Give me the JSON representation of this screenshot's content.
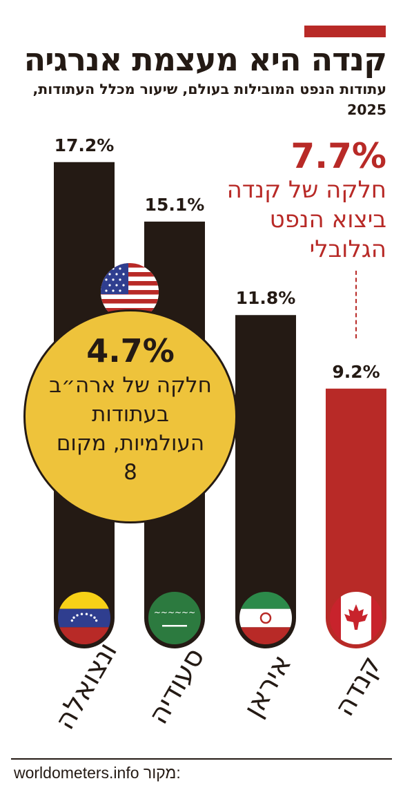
{
  "header": {
    "title": "קנדה היא מעצמת אנרגיה",
    "subtitle": "עתודות הנפט המובילות בעולם, שיעור מכלל העתודות, 2025"
  },
  "canada_callout": {
    "value": "7.7%",
    "text": "חלקה של קנדה ביצוא הנפט הגלובלי"
  },
  "us_callout": {
    "value": "4.7%",
    "text": "חלקה של ארה״ב בעתודות העולמיות, מקום 8",
    "flag_icon": "us-flag-icon"
  },
  "source": {
    "label": "מקור:",
    "value": "worldometers.info"
  },
  "colors": {
    "bar": "#241a14",
    "highlight": "#b82a27",
    "callout": "#eec33b"
  },
  "chart_data": {
    "type": "bar",
    "categories": [
      "ונצואלה",
      "סעודיה",
      "איראן",
      "קנדה"
    ],
    "values": [
      17.2,
      15.1,
      11.8,
      9.2
    ],
    "value_labels": [
      "17.2%",
      "15.1%",
      "11.8%",
      "9.2%"
    ],
    "flags": [
      "venezuela-flag-icon",
      "saudi-flag-icon",
      "iran-flag-icon",
      "canada-flag-icon"
    ],
    "highlight": "קנדה",
    "title": "קנדה היא מעצמת אנרגיה",
    "xlabel": "",
    "ylabel": "",
    "grid": false,
    "legend": "none"
  }
}
